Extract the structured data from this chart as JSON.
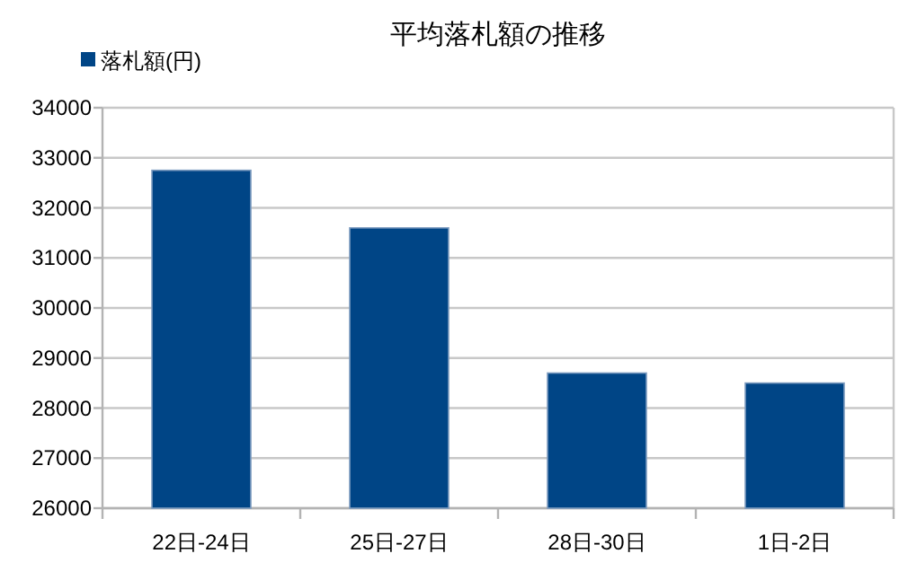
{
  "chart_data": {
    "type": "bar",
    "title": "平均落札額の推移",
    "categories": [
      "22日-24日",
      "25日-27日",
      "28日-30日",
      "1日-2日"
    ],
    "series": [
      {
        "name": "落札額(円)",
        "color": "#004586",
        "values": [
          32750,
          31600,
          28700,
          28500
        ]
      }
    ],
    "ylim": [
      26000,
      34000
    ],
    "yticks": [
      26000,
      27000,
      28000,
      29000,
      30000,
      31000,
      32000,
      33000,
      34000
    ],
    "grid": "y",
    "legend": "top left"
  }
}
